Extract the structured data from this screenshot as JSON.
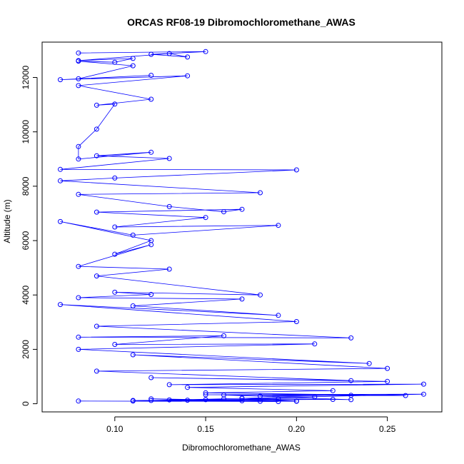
{
  "chart_data": {
    "type": "line",
    "title": "ORCAS RF08-19 Dibromochloromethane_AWAS",
    "xlabel": "Dibromochloromethane_AWAS",
    "ylabel": "Altitude (m)",
    "xlim": [
      0.06,
      0.28
    ],
    "ylim": [
      -300,
      13300
    ],
    "xticks": [
      0.1,
      0.15,
      0.2,
      0.25
    ],
    "xtick_labels": [
      "0.10",
      "0.15",
      "0.20",
      "0.25"
    ],
    "yticks": [
      0,
      2000,
      4000,
      6000,
      8000,
      10000,
      12000
    ],
    "ytick_labels": [
      "0",
      "2000",
      "4000",
      "6000",
      "8000",
      "10000",
      "12000"
    ],
    "grid": false,
    "legend": "none",
    "markers": "open-circle",
    "colors": {
      "series": "#0000ff",
      "axis": "#000000"
    },
    "series": [
      {
        "x": [
          0.08,
          0.15,
          0.12,
          0.14,
          0.13,
          0.08,
          0.11,
          0.1,
          0.08,
          0.11,
          0.08,
          0.12,
          0.07,
          0.14,
          0.08,
          0.12,
          0.09,
          0.1,
          0.09,
          0.08,
          0.08,
          0.12,
          0.09,
          0.13,
          0.07,
          0.2,
          0.1,
          0.07,
          0.18,
          0.08,
          0.13,
          0.16,
          0.17,
          0.09,
          0.15,
          0.1,
          0.19,
          0.11,
          0.07,
          0.12,
          0.1,
          0.12,
          0.08,
          0.13,
          0.09,
          0.18,
          0.1,
          0.12,
          0.08,
          0.17,
          0.11,
          0.19,
          0.07,
          0.2,
          0.09,
          0.23,
          0.08,
          0.16,
          0.1,
          0.21,
          0.08,
          0.24,
          0.11,
          0.25,
          0.09,
          0.23,
          0.12,
          0.25,
          0.13,
          0.27,
          0.14,
          0.22,
          0.15,
          0.26,
          0.16,
          0.23,
          0.17,
          0.2,
          0.12,
          0.18,
          0.11,
          0.22,
          0.13,
          0.17,
          0.14,
          0.19,
          0.15,
          0.16,
          0.17,
          0.21,
          0.18,
          0.23,
          0.15,
          0.27,
          0.12,
          0.2,
          0.11,
          0.19,
          0.08
        ],
        "y": [
          12900,
          12950,
          12850,
          12750,
          12880,
          12620,
          12700,
          12560,
          12600,
          12430,
          11950,
          12080,
          11920,
          12060,
          11700,
          11200,
          10980,
          11020,
          10100,
          9460,
          9000,
          9250,
          9120,
          9020,
          8620,
          8600,
          8300,
          8200,
          7760,
          7700,
          7250,
          7060,
          7150,
          7050,
          6850,
          6500,
          6560,
          6200,
          6700,
          6000,
          5500,
          5850,
          5050,
          4950,
          4700,
          4000,
          4100,
          4020,
          3900,
          3850,
          3600,
          3250,
          3650,
          3020,
          2850,
          2420,
          2450,
          2500,
          2180,
          2200,
          2000,
          1480,
          1800,
          1300,
          1200,
          850,
          960,
          820,
          700,
          720,
          600,
          480,
          400,
          300,
          320,
          150,
          200,
          100,
          180,
          90,
          120,
          160,
          140,
          110,
          130,
          170,
          150,
          180,
          200,
          250,
          280,
          310,
          330,
          350,
          120,
          90,
          100,
          80,
          100
        ]
      }
    ]
  }
}
